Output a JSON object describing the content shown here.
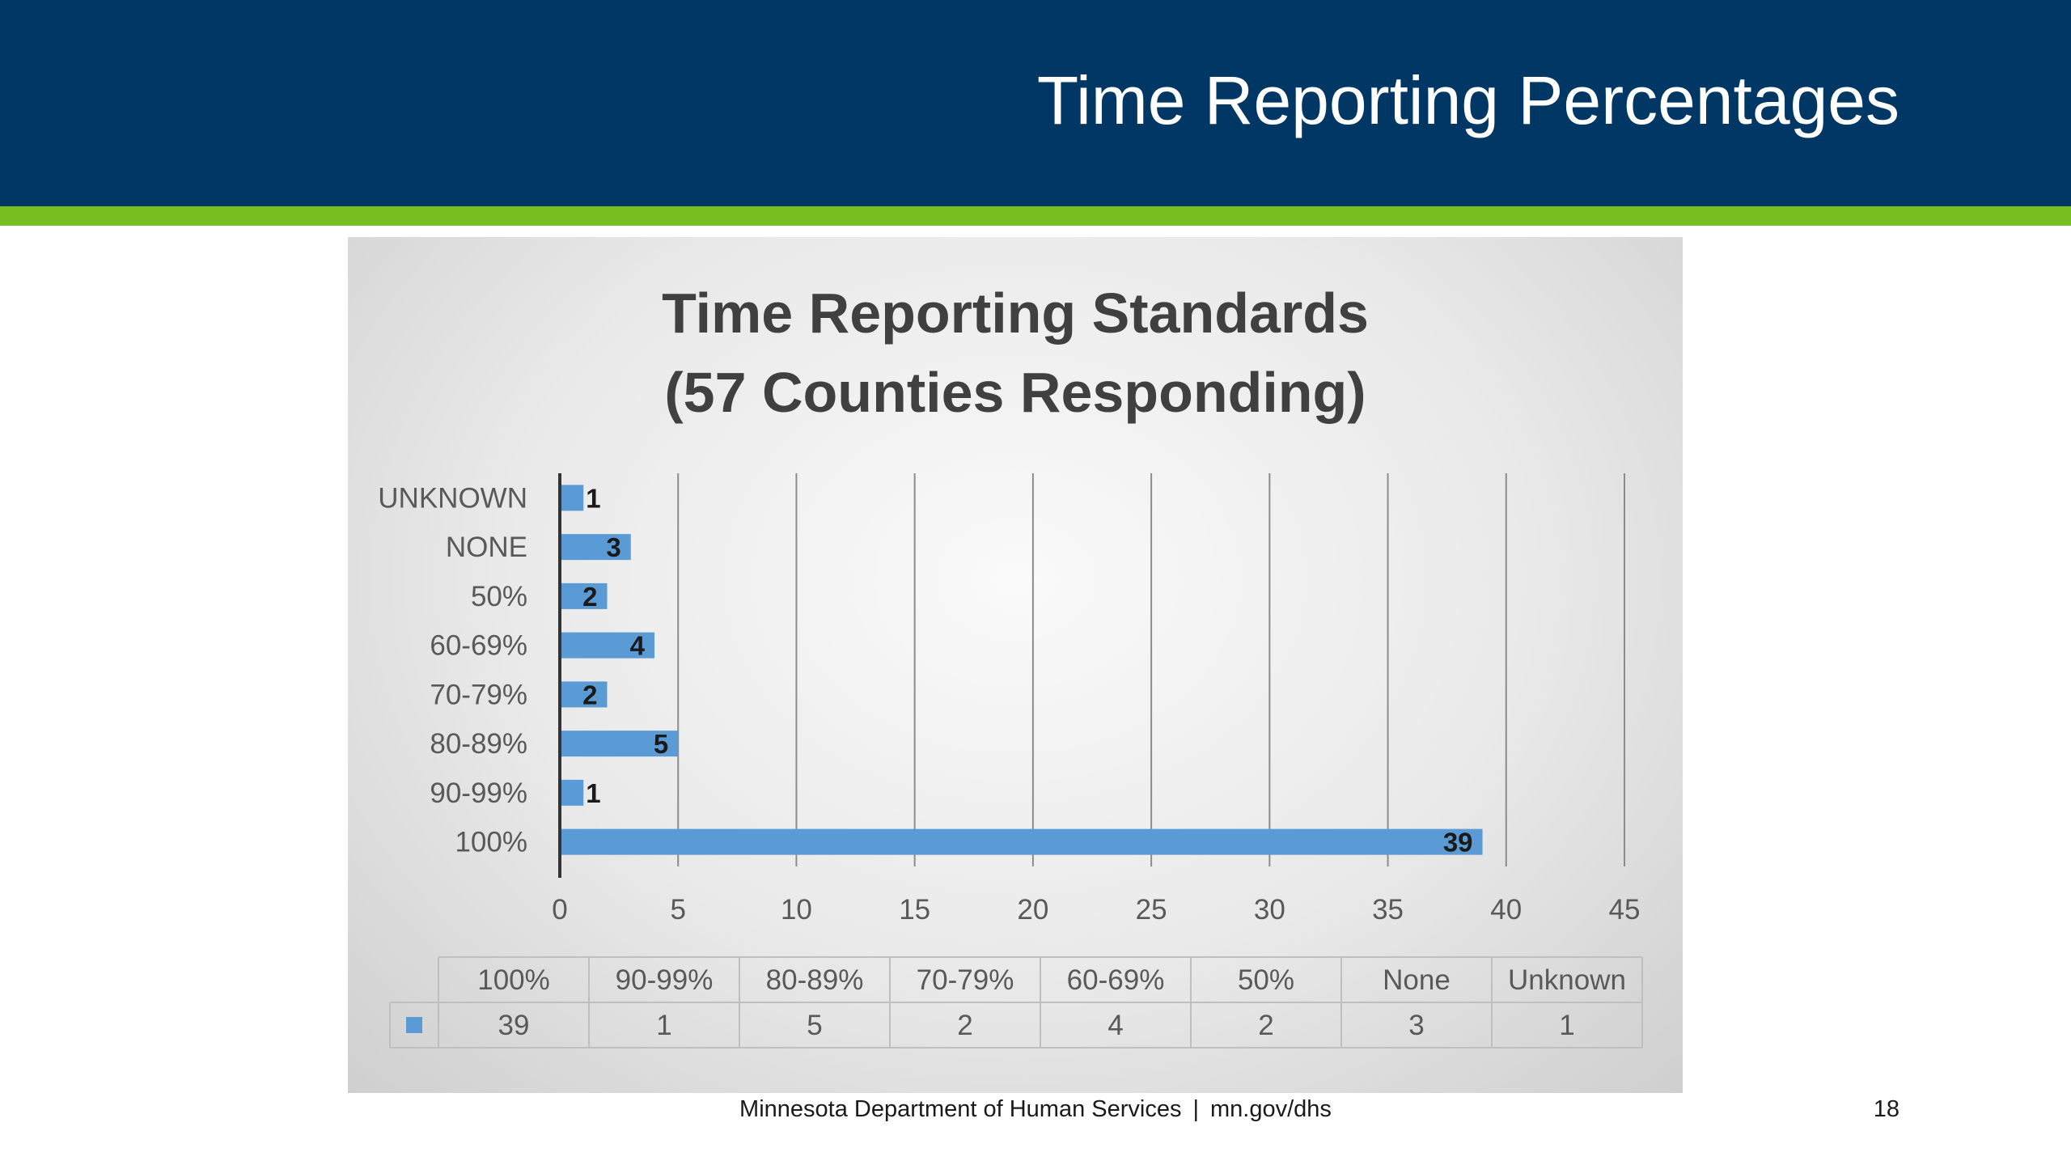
{
  "slide": {
    "title": "Time Reporting Percentages",
    "footer_org": "Minnesota Department of Human Services",
    "footer_separator": "|",
    "footer_url": "mn.gov/dhs",
    "page_number": "18",
    "colors": {
      "header": "#003764",
      "accent": "#78be20",
      "bar": "#5b9bd5"
    }
  },
  "chart_data": {
    "type": "bar",
    "orientation": "horizontal",
    "title_lines": [
      "Time Reporting Standards",
      "(57 Counties Responding)"
    ],
    "categories": [
      "100%",
      "90-99%",
      "80-89%",
      "70-79%",
      "60-69%",
      "50%",
      "NONE",
      "UNKNOWN"
    ],
    "values": [
      39,
      1,
      5,
      2,
      4,
      2,
      3,
      1
    ],
    "data_labels": [
      "39",
      "1",
      "5",
      "2",
      "4",
      "2",
      "3",
      "1"
    ],
    "xlim": [
      0,
      45
    ],
    "x_ticks": [
      "0",
      "5",
      "10",
      "15",
      "20",
      "25",
      "30",
      "35",
      "40",
      "45"
    ],
    "grid": "vertical",
    "data_table": {
      "headers": [
        "100%",
        "90-99%",
        "80-89%",
        "70-79%",
        "60-69%",
        "50%",
        "None",
        "Unknown"
      ],
      "values": [
        "39",
        "1",
        "5",
        "2",
        "4",
        "2",
        "3",
        "1"
      ]
    }
  }
}
